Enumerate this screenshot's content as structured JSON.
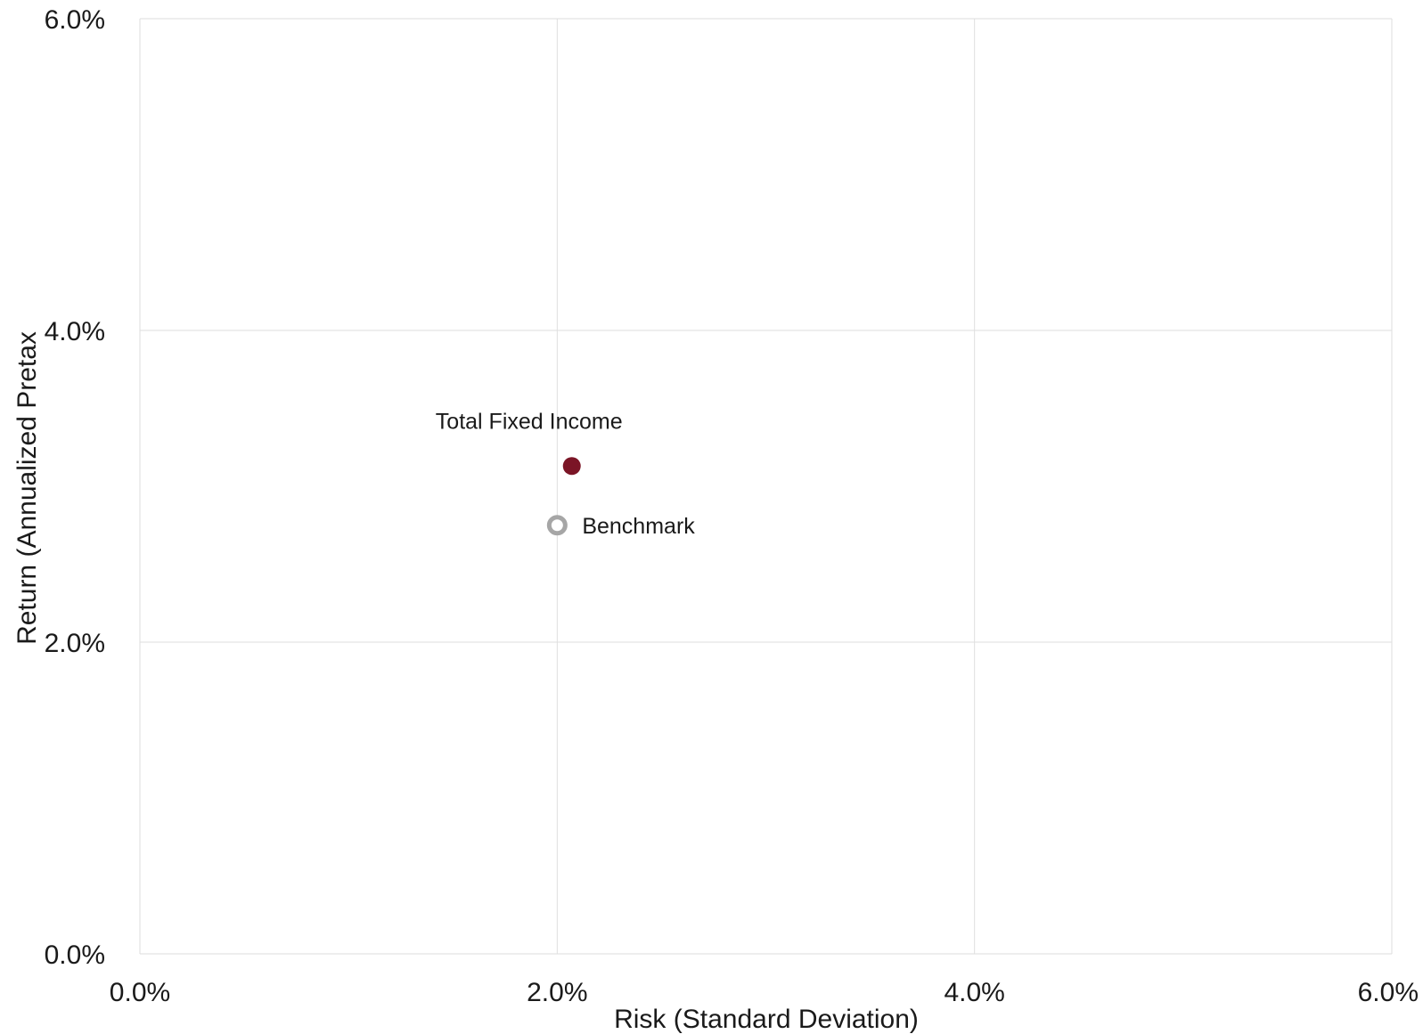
{
  "chart_data": {
    "type": "scatter",
    "title": "",
    "xlabel": "Risk (Standard Deviation)",
    "ylabel": "Return (Annualized Pretax",
    "xlim": [
      0,
      6
    ],
    "ylim": [
      0,
      6
    ],
    "x_ticks": [
      {
        "value": 0,
        "label": "0.0%"
      },
      {
        "value": 2,
        "label": "2.0%"
      },
      {
        "value": 4,
        "label": "4.0%"
      },
      {
        "value": 6,
        "label": "6.0%"
      }
    ],
    "y_ticks": [
      {
        "value": 0,
        "label": "0.0%"
      },
      {
        "value": 2,
        "label": "2.0%"
      },
      {
        "value": 4,
        "label": "4.0%"
      },
      {
        "value": 6,
        "label": "6.0%"
      }
    ],
    "grid": true,
    "legend": "none",
    "points": [
      {
        "key": "total-fixed-income",
        "label": "Total Fixed Income",
        "x": 2.07,
        "y": 3.13,
        "style": "filled",
        "color": "#7b1526",
        "label_position": "above-left"
      },
      {
        "key": "benchmark",
        "label": "Benchmark",
        "x": 2.0,
        "y": 2.75,
        "style": "hollow",
        "color": "#a6a6a6",
        "label_position": "right"
      }
    ]
  }
}
